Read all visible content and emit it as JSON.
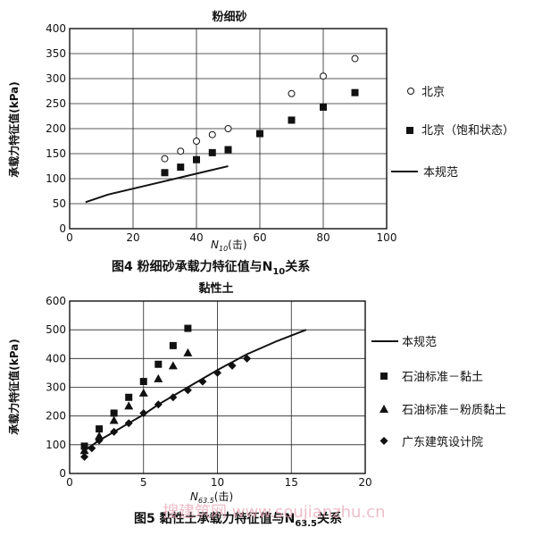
{
  "chart_data": [
    {
      "type": "scatter",
      "title": "粉细砂",
      "caption_text": "图4   粉细砂承载力特征值与N",
      "caption_sub": "10",
      "caption_tail": "关系",
      "xlabel_main": "N",
      "xlabel_sub": "10",
      "xlabel_unit": "(击)",
      "ylabel": "承载力特征值(kPa)",
      "xlim": [
        0,
        100
      ],
      "ylim": [
        0,
        400
      ],
      "x_ticks": [
        0,
        20,
        40,
        60,
        80,
        100
      ],
      "y_ticks": [
        0,
        50,
        100,
        150,
        200,
        250,
        300,
        350,
        400
      ],
      "grid": true,
      "legend_position": "right",
      "series": [
        {
          "name": "北京",
          "marker": "circle-open",
          "points": [
            [
              30,
              140
            ],
            [
              35,
              155
            ],
            [
              40,
              175
            ],
            [
              45,
              188
            ],
            [
              50,
              200
            ],
            [
              70,
              270
            ],
            [
              80,
              305
            ],
            [
              90,
              340
            ]
          ]
        },
        {
          "name": "北京（饱和状态）",
          "marker": "square",
          "points": [
            [
              30,
              112
            ],
            [
              35,
              123
            ],
            [
              40,
              138
            ],
            [
              45,
              152
            ],
            [
              50,
              158
            ],
            [
              60,
              190
            ],
            [
              70,
              217
            ],
            [
              80,
              243
            ],
            [
              90,
              272
            ]
          ]
        },
        {
          "name": "本规范",
          "marker": "line",
          "points": [
            [
              5,
              53
            ],
            [
              12,
              68
            ],
            [
              20,
              80
            ],
            [
              30,
              95
            ],
            [
              40,
              110
            ],
            [
              50,
              125
            ]
          ]
        }
      ]
    },
    {
      "type": "scatter",
      "title": "黏性土",
      "caption_text": "图5   黏性土承载力特征值与N",
      "caption_sub": "63.5",
      "caption_tail": "关系",
      "xlabel_main": "N",
      "xlabel_sub": "63.5",
      "xlabel_unit": "(击)",
      "ylabel": "承载力特征值(kPa)",
      "xlim": [
        0,
        20
      ],
      "ylim": [
        0,
        600
      ],
      "x_ticks": [
        0,
        5,
        10,
        15,
        20
      ],
      "y_ticks": [
        0,
        100,
        200,
        300,
        400,
        500,
        600
      ],
      "grid": true,
      "legend_position": "right",
      "series": [
        {
          "name": "本规范",
          "marker": "line",
          "points": [
            [
              1,
              80
            ],
            [
              2,
              115
            ],
            [
              3,
              145
            ],
            [
              4,
              175
            ],
            [
              5,
              205
            ],
            [
              6,
              240
            ],
            [
              8,
              300
            ],
            [
              10,
              360
            ],
            [
              12,
              415
            ],
            [
              14,
              460
            ],
            [
              16,
              500
            ]
          ]
        },
        {
          "name": "石油标准－黏土",
          "marker": "square",
          "points": [
            [
              1,
              95
            ],
            [
              2,
              155
            ],
            [
              3,
              210
            ],
            [
              4,
              265
            ],
            [
              5,
              320
            ],
            [
              6,
              380
            ],
            [
              7,
              445
            ],
            [
              8,
              505
            ]
          ]
        },
        {
          "name": "石油标准－粉质黏土",
          "marker": "triangle",
          "points": [
            [
              1,
              80
            ],
            [
              2,
              130
            ],
            [
              3,
              185
            ],
            [
              4,
              235
            ],
            [
              5,
              280
            ],
            [
              6,
              330
            ],
            [
              7,
              375
            ],
            [
              8,
              420
            ]
          ]
        },
        {
          "name": "广东建筑设计院",
          "marker": "diamond",
          "points": [
            [
              1,
              58
            ],
            [
              1.5,
              88
            ],
            [
              2,
              115
            ],
            [
              3,
              145
            ],
            [
              4,
              175
            ],
            [
              5,
              210
            ],
            [
              6,
              240
            ],
            [
              7,
              265
            ],
            [
              8,
              290
            ],
            [
              9,
              320
            ],
            [
              10,
              350
            ],
            [
              11,
              375
            ],
            [
              12,
              400
            ]
          ]
        }
      ]
    }
  ],
  "watermark": "搜建筑网 www.soujianzhu.cn"
}
